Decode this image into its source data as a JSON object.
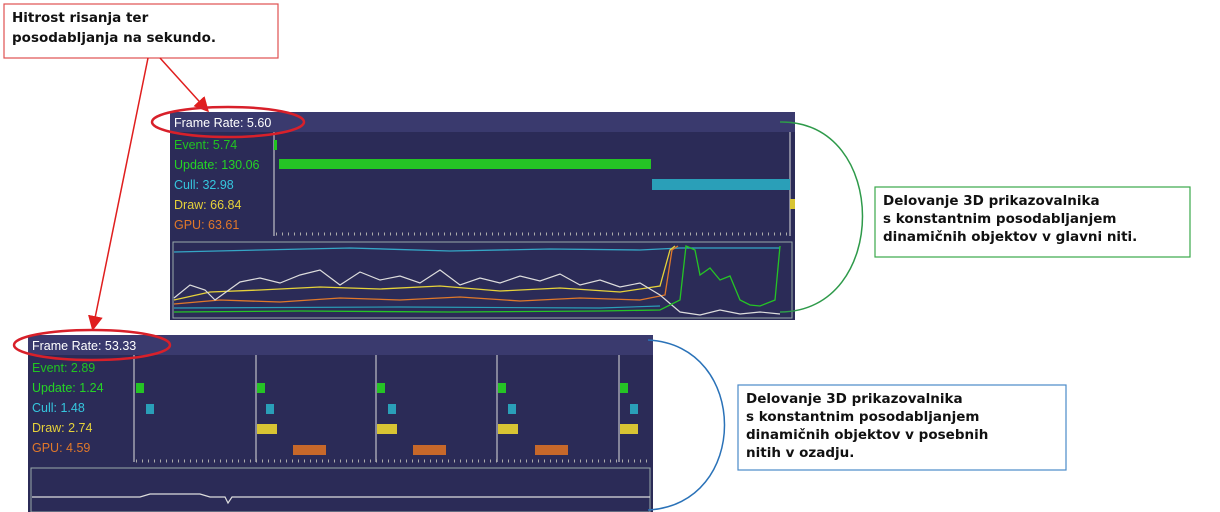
{
  "annotations": {
    "frame_rate_note": {
      "lines": [
        "Hitrost risanja ter",
        "posodabljanja na sekundo."
      ]
    },
    "main_thread_note": {
      "lines": [
        "Delovanje 3D prikazovalnika",
        "s konstantnim posodabljanjem",
        "dinamičnih objektov v glavni niti."
      ]
    },
    "background_thread_note": {
      "lines": [
        "Delovanje 3D prikazovalnika",
        "s konstantnim posodabljanjem",
        "dinamičnih objektov v posebnih",
        "nitih v ozadju."
      ]
    }
  },
  "panels": [
    {
      "frame_rate": "Frame Rate: 5.60",
      "stats": [
        {
          "label": "Event: 5.74",
          "color": "#21c421"
        },
        {
          "label": "Update: 130.06",
          "color": "#25d425"
        },
        {
          "label": "Cull: 32.98",
          "color": "#35c6de"
        },
        {
          "label": "Draw: 66.84",
          "color": "#e6d23a"
        },
        {
          "label": "GPU: 63.61",
          "color": "#e0782a"
        }
      ]
    },
    {
      "frame_rate": "Frame Rate: 53.33",
      "stats": [
        {
          "label": "Event: 2.89",
          "color": "#21c421"
        },
        {
          "label": "Update: 1.24",
          "color": "#25d425"
        },
        {
          "label": "Cull: 1.48",
          "color": "#35c6de"
        },
        {
          "label": "Draw: 2.74",
          "color": "#e6d23a"
        },
        {
          "label": "GPU: 4.59",
          "color": "#e0782a"
        }
      ]
    }
  ]
}
